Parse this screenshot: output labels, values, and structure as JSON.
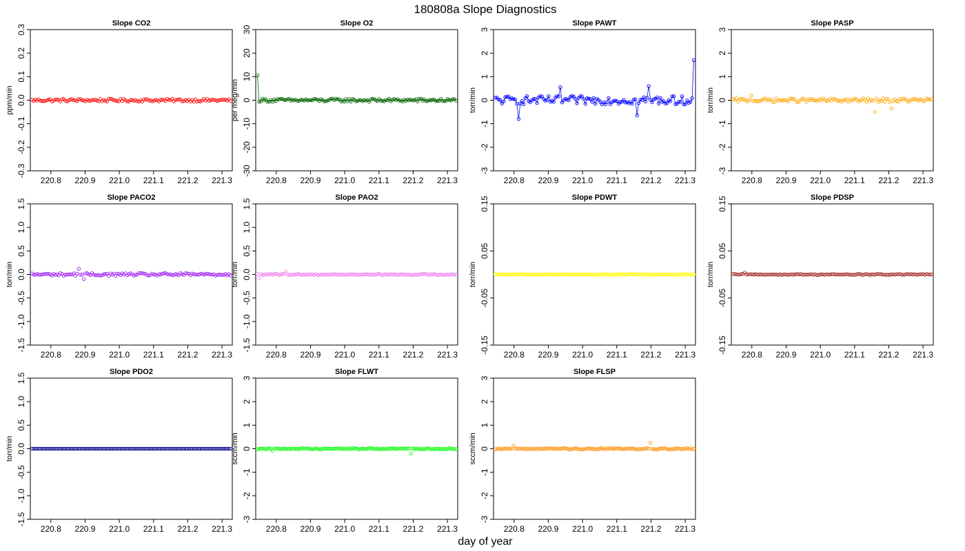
{
  "title": "180808a   Slope Diagnostics",
  "xlabel": "day of year",
  "colors": {
    "CO2": "#ff0000",
    "O2": "#006400",
    "PAWT": "#0000ff",
    "PASP": "#ffa500",
    "PACO2": "#a020f0",
    "PAO2": "#ee82ee",
    "PDWT": "#ffff00",
    "PDSP": "#a52a2a",
    "PDO2": "#00008b",
    "FLWT": "#00ff00",
    "FLSP": "#ff8c00"
  },
  "chart_data": [
    {
      "type": "scatter",
      "title": "Slope CO2",
      "ylabel": "ppm/min",
      "color": "#ff0000",
      "line": false,
      "xlim": [
        220.74,
        221.33
      ],
      "ylim": [
        -0.3,
        0.3
      ],
      "xticks": [
        "220.8",
        "220.9",
        "221.0",
        "221.1",
        "221.2",
        "221.3"
      ],
      "yticks": [
        "-0.3",
        "-0.2",
        "-0.1",
        "0.0",
        "0.1",
        "0.2",
        "0.3"
      ],
      "n": 120,
      "base": 0.0,
      "noise": 0.006,
      "spikes": []
    },
    {
      "type": "scatter",
      "title": "Slope O2",
      "ylabel": "per meg/min",
      "color": "#006400",
      "line": true,
      "xlim": [
        220.74,
        221.33
      ],
      "ylim": [
        -30,
        30
      ],
      "xticks": [
        "220.8",
        "220.9",
        "221.0",
        "221.1",
        "221.2",
        "221.3"
      ],
      "yticks": [
        "-30",
        "-20",
        "-10",
        "0",
        "10",
        "20",
        "30"
      ],
      "n": 120,
      "base": 0.0,
      "noise": 0.7,
      "spikes": [
        [
          220.74,
          10.5
        ]
      ]
    },
    {
      "type": "scatter",
      "title": "Slope PAWT",
      "ylabel": "torr/min",
      "color": "#0000ff",
      "line": true,
      "xlim": [
        220.74,
        221.33
      ],
      "ylim": [
        -3,
        3
      ],
      "xticks": [
        "220.8",
        "220.9",
        "221.0",
        "221.1",
        "221.2",
        "221.3"
      ],
      "yticks": [
        "-3",
        "-2",
        "-1",
        "0",
        "1",
        "2",
        "3"
      ],
      "n": 120,
      "base": 0.0,
      "noise": 0.18,
      "spikes": [
        [
          220.815,
          -0.8
        ],
        [
          221.16,
          -0.65
        ],
        [
          221.33,
          1.7
        ],
        [
          220.935,
          0.55
        ],
        [
          221.195,
          0.6
        ]
      ]
    },
    {
      "type": "scatter",
      "title": "Slope PASP",
      "ylabel": "torr/min",
      "color": "#ffa500",
      "line": false,
      "xlim": [
        220.74,
        221.33
      ],
      "ylim": [
        -3,
        3
      ],
      "xticks": [
        "220.8",
        "220.9",
        "221.0",
        "221.1",
        "221.2",
        "221.3"
      ],
      "yticks": [
        "-3",
        "-2",
        "-1",
        "0",
        "1",
        "2",
        "3"
      ],
      "n": 120,
      "base": 0.0,
      "noise": 0.08,
      "spikes": [
        [
          221.16,
          -0.5
        ],
        [
          221.21,
          -0.35
        ],
        [
          220.8,
          0.2
        ]
      ]
    },
    {
      "type": "scatter",
      "title": "Slope PACO2",
      "ylabel": "torr/min",
      "color": "#a020f0",
      "line": false,
      "xlim": [
        220.74,
        221.33
      ],
      "ylim": [
        -1.5,
        1.5
      ],
      "xticks": [
        "220.8",
        "220.9",
        "221.0",
        "221.1",
        "221.2",
        "221.3"
      ],
      "yticks": [
        "-1.5",
        "-1.0",
        "-0.5",
        "0.0",
        "0.5",
        "1.0",
        "1.5"
      ],
      "n": 120,
      "base": 0.0,
      "noise": 0.03,
      "spikes": [
        [
          220.88,
          0.12
        ],
        [
          220.895,
          -0.1
        ]
      ]
    },
    {
      "type": "scatter",
      "title": "Slope PAO2",
      "ylabel": "torr/min",
      "color": "#ee82ee",
      "line": false,
      "xlim": [
        220.74,
        221.33
      ],
      "ylim": [
        -1.5,
        1.5
      ],
      "xticks": [
        "220.8",
        "220.9",
        "221.0",
        "221.1",
        "221.2",
        "221.3"
      ],
      "yticks": [
        "-1.5",
        "-1.0",
        "-0.5",
        "0.0",
        "0.5",
        "1.0",
        "1.5"
      ],
      "n": 120,
      "base": 0.0,
      "noise": 0.015,
      "spikes": [
        [
          220.75,
          -0.08
        ],
        [
          220.83,
          0.06
        ]
      ]
    },
    {
      "type": "scatter",
      "title": "Slope PDWT",
      "ylabel": "torr/min",
      "color": "#ffff00",
      "line": false,
      "xlim": [
        220.74,
        221.33
      ],
      "ylim": [
        -0.15,
        0.15
      ],
      "xticks": [
        "220.8",
        "220.9",
        "221.0",
        "221.1",
        "221.2",
        "221.3"
      ],
      "yticks": [
        "-0.15",
        "-0.05",
        "0.05",
        "0.15"
      ],
      "n": 120,
      "base": 0.0,
      "noise": 0.0008,
      "spikes": []
    },
    {
      "type": "scatter",
      "title": "Slope PDSP",
      "ylabel": "torr/min",
      "color": "#a52a2a",
      "line": false,
      "xlim": [
        220.74,
        221.33
      ],
      "ylim": [
        -0.15,
        0.15
      ],
      "xticks": [
        "220.8",
        "220.9",
        "221.0",
        "221.1",
        "221.2",
        "221.3"
      ],
      "yticks": [
        "-0.15",
        "-0.05",
        "0.05",
        "0.15"
      ],
      "n": 120,
      "base": 0.0,
      "noise": 0.0012,
      "spikes": [
        [
          220.78,
          0.004
        ]
      ]
    },
    {
      "type": "scatter",
      "title": "Slope PDO2",
      "ylabel": "torr/min",
      "color": "#00008b",
      "line": false,
      "xlim": [
        220.74,
        221.33
      ],
      "ylim": [
        -1.5,
        1.5
      ],
      "xticks": [
        "220.8",
        "220.9",
        "221.0",
        "221.1",
        "221.2",
        "221.3"
      ],
      "yticks": [
        "-1.5",
        "-1.0",
        "-0.5",
        "0.0",
        "0.5",
        "1.0",
        "1.5"
      ],
      "n": 120,
      "base": 0.0,
      "noise": 0.0,
      "spikes": []
    },
    {
      "type": "scatter",
      "title": "Slope FLWT",
      "ylabel": "sccm/min",
      "color": "#00ff00",
      "line": false,
      "xlim": [
        220.74,
        221.33
      ],
      "ylim": [
        -3,
        3
      ],
      "xticks": [
        "220.8",
        "220.9",
        "221.0",
        "221.1",
        "221.2",
        "221.3"
      ],
      "yticks": [
        "-3",
        "-2",
        "-1",
        "0",
        "1",
        "2",
        "3"
      ],
      "n": 120,
      "base": 0.0,
      "noise": 0.025,
      "spikes": [
        [
          221.195,
          -0.2
        ],
        [
          220.79,
          -0.08
        ]
      ]
    },
    {
      "type": "scatter",
      "title": "Slope FLSP",
      "ylabel": "sccm/min",
      "color": "#ff8c00",
      "line": false,
      "xlim": [
        220.74,
        221.33
      ],
      "ylim": [
        -3,
        3
      ],
      "xticks": [
        "220.8",
        "220.9",
        "221.0",
        "221.1",
        "221.2",
        "221.3"
      ],
      "yticks": [
        "-3",
        "-2",
        "-1",
        "0",
        "1",
        "2",
        "3"
      ],
      "n": 120,
      "base": 0.0,
      "noise": 0.03,
      "spikes": [
        [
          221.2,
          0.25
        ],
        [
          220.8,
          0.12
        ]
      ]
    }
  ]
}
